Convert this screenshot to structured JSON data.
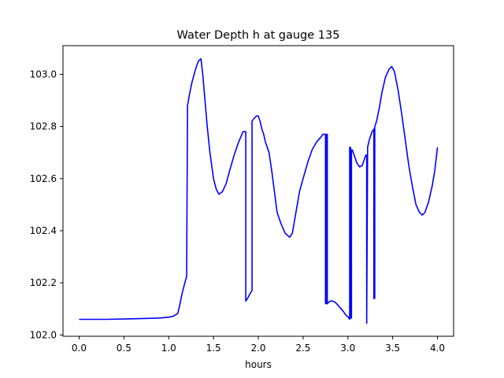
{
  "chart_data": {
    "type": "line",
    "title": "Water Depth h at gauge 135",
    "xlabel": "hours",
    "ylabel": "",
    "xlim": [
      -0.18,
      4.18
    ],
    "ylim": [
      101.995,
      103.11
    ],
    "xticks": [
      0.0,
      0.5,
      1.0,
      1.5,
      2.0,
      2.5,
      3.0,
      3.5,
      4.0
    ],
    "xtick_labels": [
      "0.0",
      "0.5",
      "1.0",
      "1.5",
      "2.0",
      "2.5",
      "3.0",
      "3.5",
      "4.0"
    ],
    "yticks": [
      102.0,
      102.2,
      102.4,
      102.6,
      102.8,
      103.0
    ],
    "ytick_labels": [
      "102.0",
      "102.2",
      "102.4",
      "102.6",
      "102.8",
      "103.0"
    ],
    "grid": false,
    "legend": "none",
    "colors": {
      "line": "#0000ff",
      "axes": "#000000",
      "background": "#ffffff"
    },
    "series": [
      {
        "x": [
          0.0,
          0.3,
          0.6,
          0.8,
          0.9,
          1.0,
          1.05,
          1.1,
          1.12,
          1.15,
          1.18,
          1.2,
          1.21,
          1.21,
          1.23,
          1.26,
          1.3,
          1.33,
          1.36,
          1.38,
          1.4,
          1.43,
          1.46,
          1.5,
          1.53,
          1.56,
          1.6,
          1.64,
          1.68,
          1.73,
          1.78,
          1.83,
          1.86,
          1.86,
          1.88,
          1.91,
          1.93,
          1.93,
          1.95,
          1.98,
          2.0,
          2.02,
          2.04,
          2.06,
          2.08,
          2.1,
          2.12,
          2.15,
          2.18,
          2.21,
          2.25,
          2.3,
          2.35,
          2.38,
          2.4,
          2.42,
          2.44,
          2.46,
          2.5,
          2.55,
          2.6,
          2.65,
          2.7,
          2.72,
          2.75,
          2.75,
          2.76,
          2.76,
          2.77,
          2.77,
          2.8,
          2.83,
          2.86,
          2.9,
          2.95,
          2.98,
          3.0,
          3.02,
          3.02,
          3.03,
          3.03,
          3.04,
          3.04,
          3.05,
          3.06,
          3.08,
          3.1,
          3.13,
          3.16,
          3.19,
          3.2,
          3.21,
          3.21,
          3.22,
          3.24,
          3.27,
          3.29,
          3.29,
          3.3,
          3.3,
          3.32,
          3.35,
          3.38,
          3.42,
          3.46,
          3.49,
          3.52,
          3.56,
          3.6,
          3.64,
          3.68,
          3.72,
          3.76,
          3.8,
          3.83,
          3.86,
          3.9,
          3.94,
          3.97,
          4.0
        ],
        "y": [
          102.06,
          102.06,
          102.062,
          102.064,
          102.065,
          102.068,
          102.072,
          102.082,
          102.11,
          102.16,
          102.2,
          102.225,
          102.88,
          102.88,
          102.92,
          102.97,
          103.02,
          103.05,
          103.06,
          103.0,
          102.92,
          102.8,
          102.7,
          102.6,
          102.56,
          102.54,
          102.55,
          102.58,
          102.63,
          102.69,
          102.74,
          102.78,
          102.78,
          102.13,
          102.14,
          102.16,
          102.17,
          102.82,
          102.83,
          102.84,
          102.84,
          102.82,
          102.79,
          102.77,
          102.74,
          102.72,
          102.7,
          102.63,
          102.55,
          102.47,
          102.43,
          102.39,
          102.375,
          102.39,
          102.43,
          102.47,
          102.51,
          102.55,
          102.6,
          102.66,
          102.71,
          102.74,
          102.76,
          102.77,
          102.77,
          102.12,
          102.12,
          102.77,
          102.77,
          102.12,
          102.13,
          102.13,
          102.125,
          102.11,
          102.09,
          102.075,
          102.07,
          102.06,
          102.72,
          102.72,
          102.065,
          102.065,
          102.71,
          102.71,
          102.7,
          102.68,
          102.66,
          102.645,
          102.65,
          102.68,
          102.69,
          102.69,
          102.045,
          102.72,
          102.75,
          102.78,
          102.79,
          102.14,
          102.14,
          102.8,
          102.82,
          102.87,
          102.93,
          102.99,
          103.02,
          103.03,
          103.01,
          102.94,
          102.85,
          102.75,
          102.65,
          102.57,
          102.5,
          102.47,
          102.46,
          102.47,
          102.51,
          102.57,
          102.63,
          102.72
        ]
      }
    ]
  }
}
